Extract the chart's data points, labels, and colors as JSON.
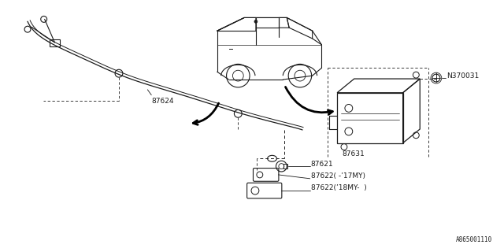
{
  "bg_color": "#ffffff",
  "line_color": "#1a1a1a",
  "fig_width": 6.4,
  "fig_height": 3.2,
  "dpi": 100,
  "label_texts": {
    "87624": "87624",
    "87621": "87621",
    "87622_17my": "87622( -’17MY)",
    "87622_18my": "87622(’18MY-  )",
    "87631": "87631",
    "N370031": "N370031",
    "part_num": "A865001110"
  }
}
